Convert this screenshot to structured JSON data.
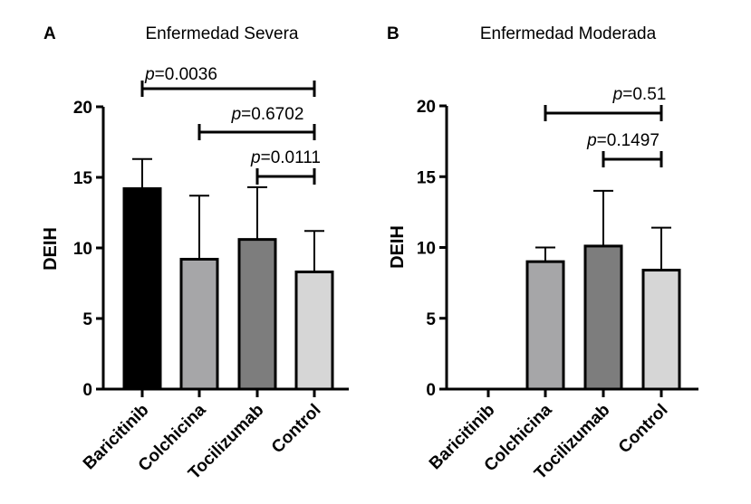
{
  "chart_data": [
    {
      "type": "bar",
      "panel_letter": "A",
      "title": "Enfermedad Severa",
      "xlabel": "",
      "ylabel": "DEIH",
      "ylim": [
        0,
        20
      ],
      "yticks": [
        0,
        5,
        10,
        15,
        20
      ],
      "grid": false,
      "categories": [
        "Baricitinib",
        "Colchicina",
        "Tocilizumab",
        "Control"
      ],
      "values": [
        14.2,
        9.2,
        10.6,
        8.3
      ],
      "error_upper": [
        16.3,
        13.7,
        14.3,
        11.2
      ],
      "bar_colors": [
        "#000000",
        "#a6a6a8",
        "#7d7d7d",
        "#d6d6d6"
      ],
      "comparisons": [
        {
          "from": "Baricitinib",
          "to": "Control",
          "label_prefix": "p",
          "label_value": "=0.0036"
        },
        {
          "from": "Colchicina",
          "to": "Control",
          "label_prefix": "p",
          "label_value": "=0.6702"
        },
        {
          "from": "Tocilizumab",
          "to": "Control",
          "label_prefix": "p",
          "label_value": "=0.0111"
        }
      ]
    },
    {
      "type": "bar",
      "panel_letter": "B",
      "title": "Enfermedad Moderada",
      "xlabel": "",
      "ylabel": "DEIH",
      "ylim": [
        0,
        20
      ],
      "yticks": [
        0,
        5,
        10,
        15,
        20
      ],
      "grid": false,
      "categories": [
        "Baricitinib",
        "Colchicina",
        "Tocilizumab",
        "Control"
      ],
      "values": [
        0,
        9.0,
        10.1,
        8.4
      ],
      "error_upper": [
        0,
        10.0,
        14.0,
        11.4
      ],
      "bar_colors": [
        "#000000",
        "#a6a6a8",
        "#7d7d7d",
        "#d6d6d6"
      ],
      "comparisons": [
        {
          "from": "Colchicina",
          "to": "Control",
          "label_prefix": "p",
          "label_value": "=0.51"
        },
        {
          "from": "Tocilizumab",
          "to": "Control",
          "label_prefix": "p",
          "label_value": "=0.1497"
        }
      ]
    }
  ]
}
